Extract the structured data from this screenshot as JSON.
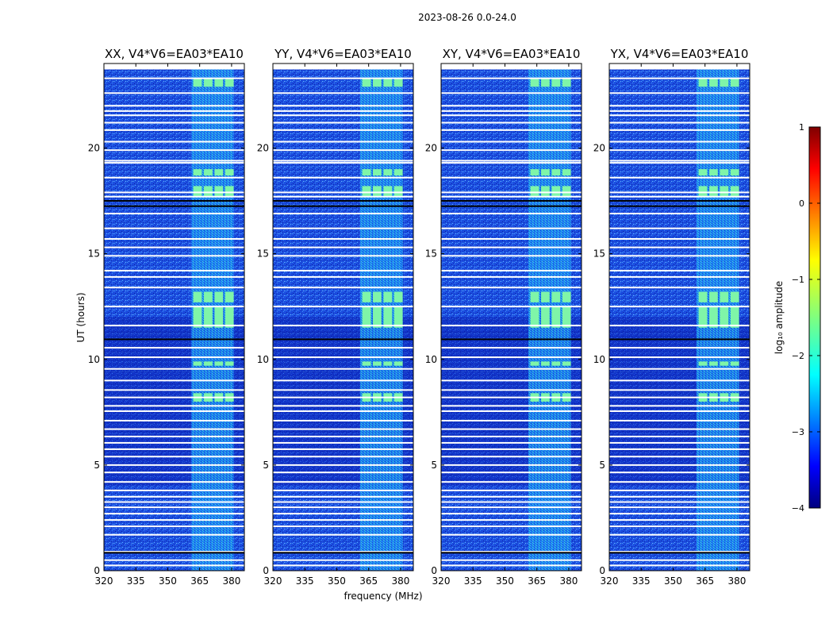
{
  "figure": {
    "suptitle": "2023-08-26 0.0-24.0"
  },
  "chart_data": {
    "type": "heatmap",
    "xlabel": "frequency (MHz)",
    "ylabel": "UT (hours)",
    "xlim": [
      320,
      386
    ],
    "ylim": [
      0,
      24
    ],
    "xticks": [
      320,
      335,
      350,
      365,
      380
    ],
    "yticks": [
      0,
      5,
      10,
      15,
      20
    ],
    "xtick_labels": [
      "320",
      "335",
      "350",
      "365",
      "380"
    ],
    "ytick_labels": [
      "0",
      "5",
      "10",
      "15",
      "20"
    ],
    "panels": [
      {
        "title": "XX, V4*V6=EA03*EA10",
        "pol": "XX"
      },
      {
        "title": "YY, V4*V6=EA03*EA10",
        "pol": "YY"
      },
      {
        "title": "XY, V4*V6=EA03*EA10",
        "pol": "XY"
      },
      {
        "title": "YX, V4*V6=EA03*EA10",
        "pol": "YX"
      }
    ],
    "rfi_band_mhz": [
      361,
      381
    ],
    "rfi_channels_mhz": [
      364,
      369,
      374,
      379
    ],
    "bright_hours": [
      [
        8.0,
        8.4
      ],
      [
        9.7,
        9.9
      ],
      [
        11.5,
        12.5
      ],
      [
        12.7,
        13.2
      ],
      [
        17.7,
        18.2
      ],
      [
        18.7,
        19.0
      ],
      [
        22.9,
        23.3
      ]
    ],
    "flagged_white_hours": [
      0.25,
      0.5,
      0.9,
      1.7,
      2.1,
      2.4,
      2.7,
      3.0,
      3.25,
      3.5,
      3.8,
      4.2,
      4.65,
      5.0,
      5.4,
      5.75,
      6.05,
      6.35,
      6.7,
      7.1,
      7.55,
      7.8,
      8.2,
      8.55,
      9.0,
      9.55,
      10.1,
      10.55,
      11.6,
      12.5,
      13.4,
      13.9,
      14.2,
      14.9,
      15.3,
      15.7,
      16.2,
      16.9,
      17.7,
      17.9,
      18.6,
      19.3,
      19.4,
      19.9,
      20.3,
      20.85,
      21.2,
      21.55,
      21.75,
      22.0,
      22.6,
      23.3
    ],
    "black_lines_hours": [
      0.85,
      10.95,
      17.25,
      17.5
    ],
    "colorbar": {
      "label": "log₁₀ amplitude",
      "min": -4,
      "max": 1,
      "ticks": [
        1,
        0,
        -1,
        -2,
        -3,
        -4
      ],
      "tick_labels": [
        "1",
        "0",
        "−1",
        "−2",
        "−3",
        "−4"
      ],
      "colormap": "jet"
    }
  }
}
